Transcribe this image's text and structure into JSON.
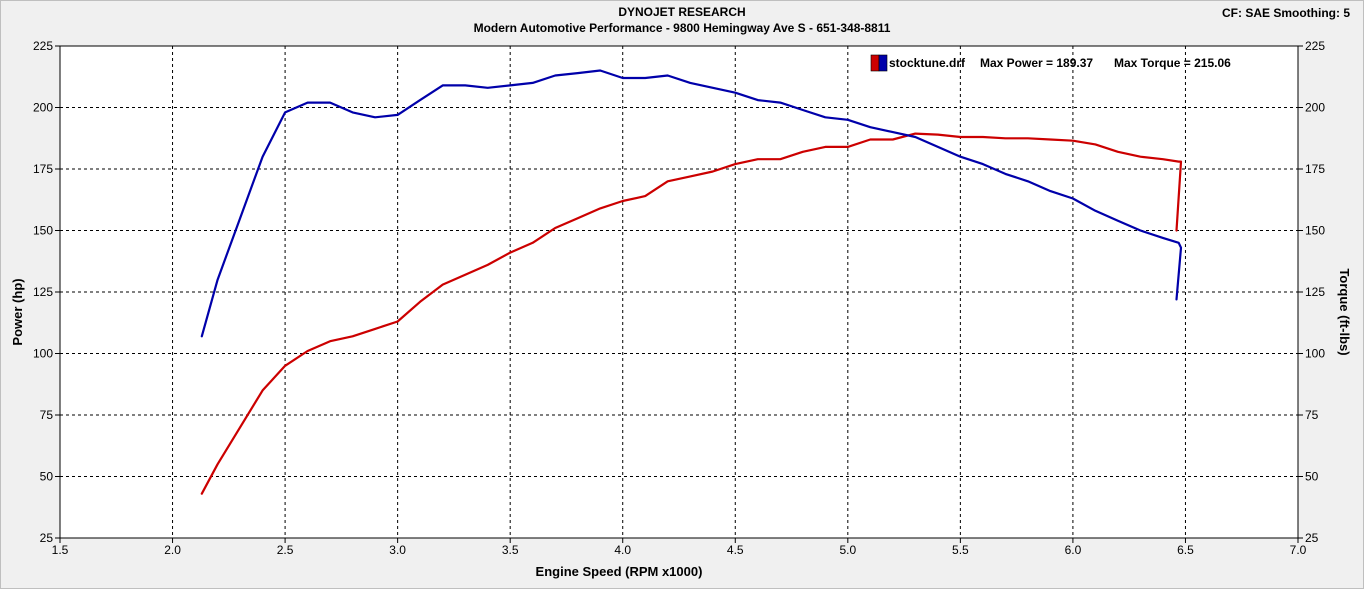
{
  "header": {
    "title": "DYNOJET RESEARCH",
    "subtitle": "Modern Automotive Performance - 9800 Hemingway Ave S - 651-348-8811",
    "settings": "CF: SAE  Smoothing: 5"
  },
  "chart_data": {
    "type": "line",
    "xlabel": "Engine Speed (RPM x1000)",
    "ylabel_left": "Power (hp)",
    "ylabel_right": "Torque (ft-lbs)",
    "xlim": [
      1.5,
      7.0
    ],
    "ylim": [
      25,
      225
    ],
    "x_ticks": [
      "1.5",
      "2.0",
      "2.5",
      "3.0",
      "3.5",
      "4.0",
      "4.5",
      "5.0",
      "5.5",
      "6.0",
      "6.5",
      "7.0"
    ],
    "y_ticks": [
      "25",
      "50",
      "75",
      "100",
      "125",
      "150",
      "175",
      "200",
      "225"
    ],
    "grid": true,
    "legend": {
      "position": "top-right",
      "file": "stocktune.drf",
      "max_power_label": "Max Power = 189.37",
      "max_torque_label": "Max Torque = 215.06"
    },
    "colors": {
      "power": "#cc0000",
      "torque": "#0000aa",
      "plot_bg": "#ffffff",
      "frame_bg": "#f0f0f0"
    },
    "series": [
      {
        "name": "Power",
        "color": "#cc0000",
        "x": [
          2.13,
          2.2,
          2.3,
          2.4,
          2.5,
          2.6,
          2.7,
          2.8,
          2.9,
          3.0,
          3.1,
          3.2,
          3.3,
          3.4,
          3.5,
          3.6,
          3.7,
          3.8,
          3.9,
          4.0,
          4.1,
          4.2,
          4.3,
          4.4,
          4.5,
          4.6,
          4.7,
          4.8,
          4.9,
          5.0,
          5.1,
          5.2,
          5.3,
          5.4,
          5.5,
          5.6,
          5.7,
          5.8,
          5.9,
          6.0,
          6.1,
          6.2,
          6.3,
          6.4,
          6.47,
          6.48,
          6.46
        ],
        "y": [
          43,
          55,
          70,
          85,
          95,
          101,
          105,
          107,
          110,
          113,
          121,
          128,
          132,
          136,
          141,
          145,
          151,
          155,
          159,
          162,
          164,
          170,
          172,
          174,
          177,
          179,
          179,
          182,
          184,
          184,
          187,
          187,
          189.37,
          189,
          188,
          188,
          187.5,
          187.5,
          187,
          186.5,
          185,
          182,
          180,
          179,
          178,
          178,
          150
        ]
      },
      {
        "name": "Torque",
        "color": "#0000aa",
        "x": [
          2.13,
          2.2,
          2.3,
          2.4,
          2.5,
          2.6,
          2.7,
          2.8,
          2.9,
          3.0,
          3.1,
          3.2,
          3.3,
          3.4,
          3.5,
          3.6,
          3.7,
          3.8,
          3.9,
          4.0,
          4.1,
          4.2,
          4.3,
          4.4,
          4.5,
          4.6,
          4.7,
          4.8,
          4.9,
          5.0,
          5.1,
          5.2,
          5.3,
          5.4,
          5.5,
          5.6,
          5.7,
          5.8,
          5.9,
          6.0,
          6.1,
          6.2,
          6.3,
          6.4,
          6.47,
          6.48,
          6.46
        ],
        "y": [
          107,
          130,
          155,
          180,
          198,
          202,
          202,
          198,
          196,
          197,
          203,
          209,
          209,
          208,
          209,
          210,
          213,
          214,
          215.06,
          212,
          212,
          213,
          210,
          208,
          206,
          203,
          202,
          199,
          196,
          195,
          192,
          190,
          188,
          184,
          180,
          177,
          173,
          170,
          166,
          163,
          158,
          154,
          150,
          147,
          145,
          143,
          122
        ]
      }
    ]
  }
}
